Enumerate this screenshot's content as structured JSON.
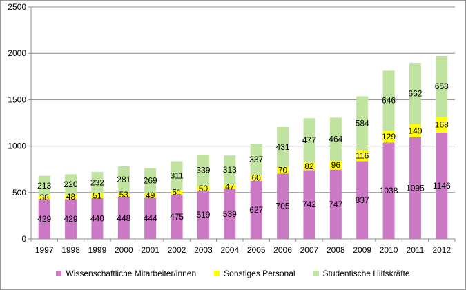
{
  "chart_data": {
    "type": "bar",
    "stacked": true,
    "categories": [
      "1997",
      "1998",
      "1999",
      "2000",
      "2001",
      "2002",
      "2003",
      "2004",
      "2005",
      "2006",
      "2007",
      "2008",
      "2009",
      "2010",
      "2011",
      "2012"
    ],
    "series": [
      {
        "name": "Wissenschaftliche Mitarbeiter/innen",
        "color": "#cc7ac6",
        "values": [
          429,
          429,
          440,
          448,
          444,
          475,
          519,
          539,
          627,
          705,
          742,
          747,
          837,
          1038,
          1095,
          1146
        ]
      },
      {
        "name": "Sonstiges Personal",
        "color": "#ffff00",
        "values": [
          38,
          48,
          51,
          53,
          49,
          51,
          50,
          47,
          60,
          70,
          82,
          96,
          116,
          129,
          140,
          168
        ]
      },
      {
        "name": "Studentische Hilfskräfte",
        "color": "#c1e3a0",
        "values": [
          213,
          220,
          232,
          281,
          269,
          311,
          339,
          313,
          337,
          431,
          477,
          464,
          584,
          646,
          662,
          658
        ]
      }
    ],
    "ylim": [
      0,
      2500
    ],
    "yticks": [
      0,
      500,
      1000,
      1500,
      2000,
      2500
    ],
    "grid": true,
    "legend_position": "bottom",
    "data_labels": true
  }
}
